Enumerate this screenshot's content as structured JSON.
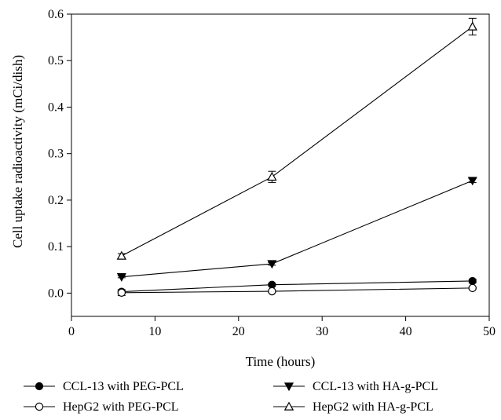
{
  "chart_data": {
    "type": "line",
    "xlabel": "Time (hours)",
    "ylabel": "Cell uptake radioactivity (mCi/dish)",
    "xlim": [
      0,
      50
    ],
    "ylim": [
      -0.05,
      0.6
    ],
    "xticks": [
      0,
      10,
      20,
      30,
      40,
      50
    ],
    "xtick_labels": [
      "0",
      "10",
      "20",
      "30",
      "40",
      "50"
    ],
    "yticks": [
      0.0,
      0.1,
      0.2,
      0.3,
      0.4,
      0.5,
      0.6
    ],
    "ytick_labels": [
      "0.0",
      "0.1",
      "0.2",
      "0.3",
      "0.4",
      "0.5",
      "0.6"
    ],
    "grid": false,
    "legend_position": "bottom",
    "x": [
      6,
      24,
      48
    ],
    "series": [
      {
        "name": "CCL-13 with PEG-PCL",
        "marker": "filled-circle",
        "values": [
          0.003,
          0.018,
          0.026
        ],
        "errors": [
          0.004,
          0.003,
          0.004
        ]
      },
      {
        "name": "CCL-13 with HA-g-PCL",
        "marker": "filled-triangle-down",
        "values": [
          0.035,
          0.063,
          0.242
        ],
        "errors": [
          0.002,
          0.003,
          0.004
        ]
      },
      {
        "name": "HepG2 with PEG-PCL",
        "marker": "open-circle",
        "values": [
          0.001,
          0.004,
          0.011
        ],
        "errors": [
          0.006,
          0.002,
          0.002
        ]
      },
      {
        "name": "HepG2 with HA-g-PCL",
        "marker": "open-triangle-up",
        "values": [
          0.08,
          0.25,
          0.573
        ],
        "errors": [
          0.005,
          0.012,
          0.018
        ]
      }
    ]
  }
}
